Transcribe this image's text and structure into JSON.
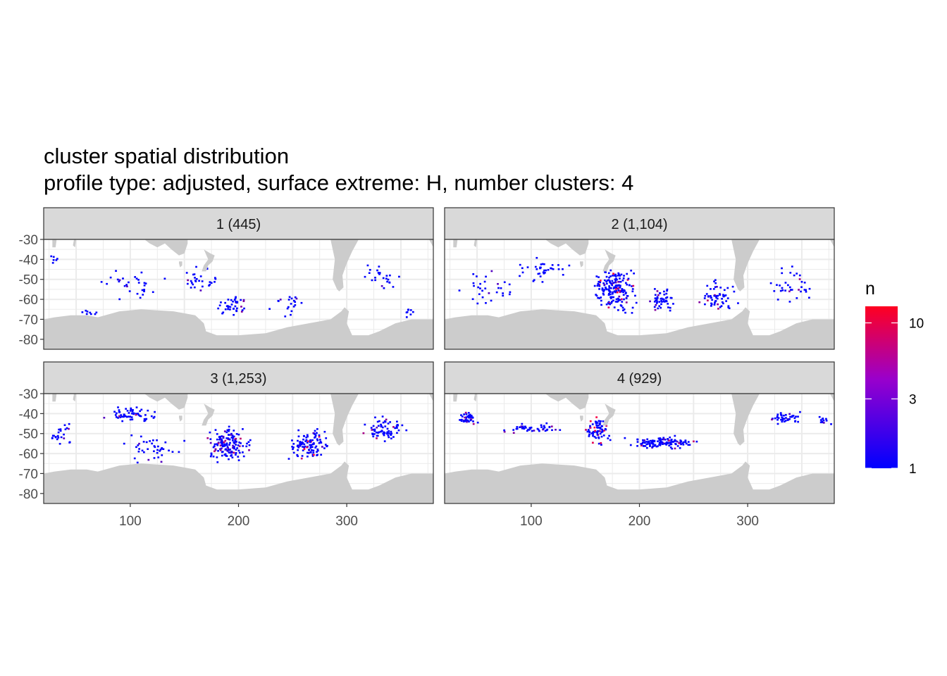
{
  "chart_data": {
    "type": "heatmap",
    "title": "cluster spatial distribution",
    "subtitle": "profile type: adjusted, surface extreme: H, number clusters: 4",
    "xlabel": "",
    "ylabel": "",
    "xlim": [
      20,
      380
    ],
    "ylim": [
      -85,
      -30
    ],
    "x_ticks": [
      100,
      200,
      300
    ],
    "x_tick_labels": [
      "100",
      "200",
      "300"
    ],
    "y_ticks": [
      -30,
      -40,
      -50,
      -60,
      -70,
      -80
    ],
    "y_tick_labels": [
      "-30",
      "-40",
      "-50",
      "-60",
      "-70",
      "-80"
    ],
    "grid": true,
    "legend": {
      "title": "n",
      "position": "right",
      "scale": "log",
      "range": [
        1,
        13
      ],
      "ticks": [
        1,
        3,
        10
      ],
      "tick_labels": [
        "1",
        "3",
        "10"
      ],
      "colors": [
        "#0000ff",
        "#ff0000"
      ]
    },
    "colors": {
      "land": "#cccccc",
      "strip_background": "#d9d9d9",
      "panel_border": "#333333",
      "grid": "#ebebeb"
    },
    "panels": [
      {
        "label": "1 (445)",
        "n_profiles": 445,
        "clusters_of_profiles": [
          {
            "lon": 28,
            "lat": -40,
            "spread_lon": 6,
            "spread_lat": 3,
            "count": 6,
            "max_n": 2
          },
          {
            "lon": 60,
            "lat": -66,
            "spread_lon": 15,
            "spread_lat": 3,
            "count": 8,
            "max_n": 1
          },
          {
            "lon": 100,
            "lat": -52,
            "spread_lon": 40,
            "spread_lat": 10,
            "count": 30,
            "max_n": 2
          },
          {
            "lon": 165,
            "lat": -50,
            "spread_lon": 20,
            "spread_lat": 10,
            "count": 30,
            "max_n": 3
          },
          {
            "lon": 195,
            "lat": -63,
            "spread_lon": 20,
            "spread_lat": 6,
            "count": 40,
            "max_n": 3
          },
          {
            "lon": 245,
            "lat": -62,
            "spread_lon": 25,
            "spread_lat": 8,
            "count": 20,
            "max_n": 2
          },
          {
            "lon": 330,
            "lat": -48,
            "spread_lon": 20,
            "spread_lat": 10,
            "count": 25,
            "max_n": 2
          },
          {
            "lon": 360,
            "lat": -66,
            "spread_lon": 10,
            "spread_lat": 3,
            "count": 8,
            "max_n": 2
          }
        ]
      },
      {
        "label": "2 (1,104)",
        "n_profiles": 1104,
        "clusters_of_profiles": [
          {
            "lon": 60,
            "lat": -55,
            "spread_lon": 30,
            "spread_lat": 12,
            "count": 30,
            "max_n": 2
          },
          {
            "lon": 110,
            "lat": -45,
            "spread_lon": 30,
            "spread_lat": 8,
            "count": 35,
            "max_n": 2
          },
          {
            "lon": 175,
            "lat": -55,
            "spread_lon": 25,
            "spread_lat": 14,
            "count": 180,
            "max_n": 10
          },
          {
            "lon": 220,
            "lat": -60,
            "spread_lon": 15,
            "spread_lat": 8,
            "count": 50,
            "max_n": 4
          },
          {
            "lon": 270,
            "lat": -58,
            "spread_lon": 25,
            "spread_lat": 10,
            "count": 60,
            "max_n": 5
          },
          {
            "lon": 340,
            "lat": -52,
            "spread_lon": 25,
            "spread_lat": 12,
            "count": 35,
            "max_n": 4
          }
        ]
      },
      {
        "label": "3 (1,253)",
        "n_profiles": 1253,
        "clusters_of_profiles": [
          {
            "lon": 35,
            "lat": -50,
            "spread_lon": 12,
            "spread_lat": 8,
            "count": 25,
            "max_n": 3
          },
          {
            "lon": 100,
            "lat": -40,
            "spread_lon": 30,
            "spread_lat": 5,
            "count": 60,
            "max_n": 5
          },
          {
            "lon": 120,
            "lat": -57,
            "spread_lon": 35,
            "spread_lat": 10,
            "count": 40,
            "max_n": 2
          },
          {
            "lon": 190,
            "lat": -55,
            "spread_lon": 25,
            "spread_lat": 12,
            "count": 150,
            "max_n": 5
          },
          {
            "lon": 265,
            "lat": -55,
            "spread_lon": 25,
            "spread_lat": 10,
            "count": 110,
            "max_n": 8
          },
          {
            "lon": 335,
            "lat": -47,
            "spread_lon": 25,
            "spread_lat": 8,
            "count": 70,
            "max_n": 4
          }
        ]
      },
      {
        "label": "4 (929)",
        "n_profiles": 929,
        "clusters_of_profiles": [
          {
            "lon": 40,
            "lat": -42,
            "spread_lon": 15,
            "spread_lat": 4,
            "count": 45,
            "max_n": 4
          },
          {
            "lon": 100,
            "lat": -47,
            "spread_lon": 35,
            "spread_lat": 3,
            "count": 45,
            "max_n": 3
          },
          {
            "lon": 160,
            "lat": -48,
            "spread_lon": 15,
            "spread_lat": 8,
            "count": 70,
            "max_n": 8
          },
          {
            "lon": 220,
            "lat": -54,
            "spread_lon": 40,
            "spread_lat": 4,
            "count": 120,
            "max_n": 5
          },
          {
            "lon": 335,
            "lat": -42,
            "spread_lon": 20,
            "spread_lat": 4,
            "count": 40,
            "max_n": 3
          },
          {
            "lon": 370,
            "lat": -43,
            "spread_lon": 8,
            "spread_lat": 3,
            "count": 12,
            "max_n": 2
          }
        ]
      }
    ],
    "landmasses": {
      "antarctica": [
        [
          20,
          -70
        ],
        [
          30,
          -69
        ],
        [
          45,
          -68
        ],
        [
          60,
          -68
        ],
        [
          70,
          -69
        ],
        [
          90,
          -66
        ],
        [
          110,
          -65
        ],
        [
          140,
          -66
        ],
        [
          160,
          -68
        ],
        [
          168,
          -72
        ],
        [
          170,
          -76
        ],
        [
          180,
          -78
        ],
        [
          200,
          -78
        ],
        [
          225,
          -77
        ],
        [
          245,
          -74
        ],
        [
          265,
          -72
        ],
        [
          285,
          -70
        ],
        [
          295,
          -66
        ],
        [
          298,
          -64
        ],
        [
          302,
          -66
        ],
        [
          300,
          -72
        ],
        [
          305,
          -78
        ],
        [
          320,
          -78
        ],
        [
          330,
          -76
        ],
        [
          345,
          -72
        ],
        [
          360,
          -70
        ],
        [
          380,
          -70
        ],
        [
          380,
          -85
        ],
        [
          20,
          -85
        ]
      ],
      "others": [
        [
          [
            113,
            -30
          ],
          [
            118,
            -32
          ],
          [
            125,
            -34
          ],
          [
            132,
            -32
          ],
          [
            138,
            -35
          ],
          [
            145,
            -38
          ],
          [
            150,
            -37
          ],
          [
            153,
            -32
          ],
          [
            153,
            -30
          ]
        ],
        [
          [
            145,
            -41
          ],
          [
            148,
            -41
          ],
          [
            148,
            -43
          ],
          [
            146,
            -44
          ],
          [
            145,
            -42
          ]
        ],
        [
          [
            168,
            -35
          ],
          [
            174,
            -37
          ],
          [
            178,
            -38
          ],
          [
            176,
            -41
          ],
          [
            172,
            -43
          ],
          [
            170,
            -46
          ],
          [
            166,
            -46
          ],
          [
            168,
            -43
          ],
          [
            172,
            -40
          ]
        ],
        [
          [
            285,
            -30
          ],
          [
            289,
            -40
          ],
          [
            287,
            -50
          ],
          [
            291,
            -55
          ],
          [
            293,
            -56
          ],
          [
            297,
            -54
          ],
          [
            296,
            -48
          ],
          [
            300,
            -42
          ],
          [
            305,
            -36
          ],
          [
            311,
            -30
          ]
        ],
        [
          [
            372,
            -30
          ],
          [
            376,
            -30
          ],
          [
            380,
            -34
          ],
          [
            380,
            -30
          ]
        ],
        [
          [
            28,
            -30
          ],
          [
            32,
            -30
          ],
          [
            31,
            -34
          ],
          [
            28,
            -34
          ]
        ],
        [
          [
            48,
            -30
          ],
          [
            50,
            -30
          ],
          [
            49,
            -34
          ],
          [
            47,
            -33
          ]
        ]
      ]
    }
  }
}
